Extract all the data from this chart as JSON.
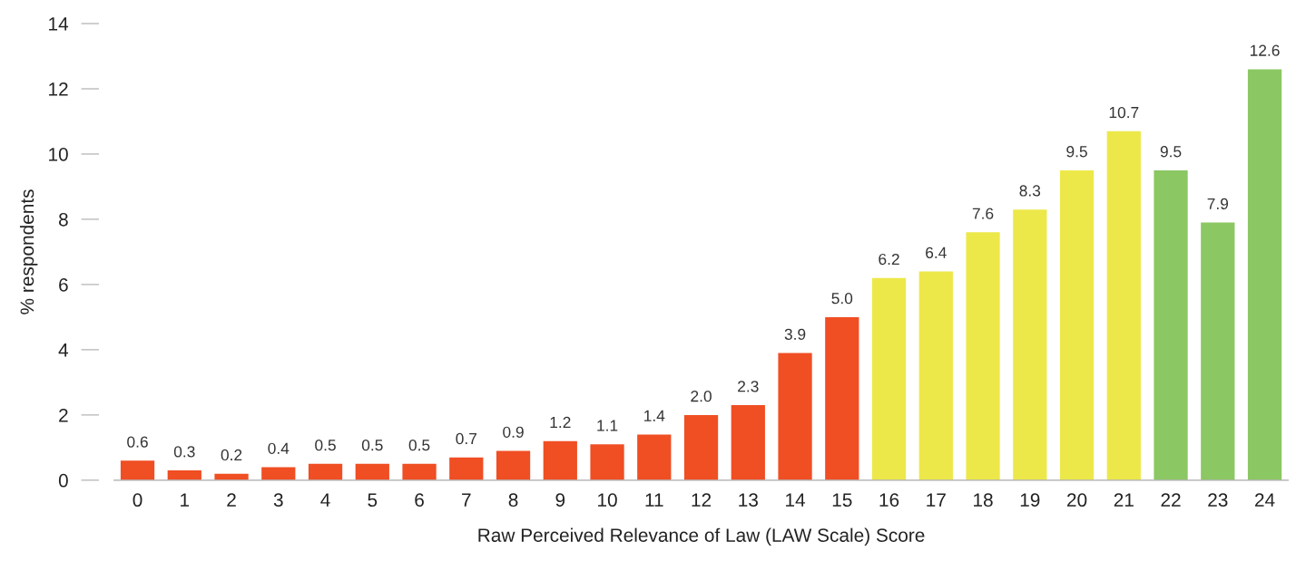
{
  "chart_data": {
    "type": "bar",
    "xlabel": "Raw Perceived Relevance of Law (LAW Scale) Score",
    "ylabel": "% respondents",
    "categories": [
      "0",
      "1",
      "2",
      "3",
      "4",
      "5",
      "6",
      "7",
      "8",
      "9",
      "10",
      "11",
      "12",
      "13",
      "14",
      "15",
      "16",
      "17",
      "18",
      "19",
      "20",
      "21",
      "22",
      "23",
      "24"
    ],
    "values": [
      0.6,
      0.3,
      0.2,
      0.4,
      0.5,
      0.5,
      0.5,
      0.7,
      0.9,
      1.2,
      1.1,
      1.4,
      2.0,
      2.3,
      3.9,
      5.0,
      6.2,
      6.4,
      7.6,
      8.3,
      9.5,
      10.7,
      9.5,
      7.9,
      12.6
    ],
    "value_labels": [
      "0.6",
      "0.3",
      "0.2",
      "0.4",
      "0.5",
      "0.5",
      "0.5",
      "0.7",
      "0.9",
      "1.2",
      "1.1",
      "1.4",
      "2.0",
      "2.3",
      "3.9",
      "5.0",
      "6.2",
      "6.4",
      "7.6",
      "8.3",
      "9.5",
      "10.7",
      "9.5",
      "7.9",
      "12.6"
    ],
    "colors": [
      "#f04e23",
      "#f04e23",
      "#f04e23",
      "#f04e23",
      "#f04e23",
      "#f04e23",
      "#f04e23",
      "#f04e23",
      "#f04e23",
      "#f04e23",
      "#f04e23",
      "#f04e23",
      "#f04e23",
      "#f04e23",
      "#f04e23",
      "#f04e23",
      "#ede84a",
      "#ede84a",
      "#ede84a",
      "#ede84a",
      "#ede84a",
      "#ede84a",
      "#8bc763",
      "#8bc763",
      "#8bc763"
    ],
    "ylim": [
      0,
      14
    ],
    "yticks": [
      0,
      2,
      4,
      6,
      8,
      10,
      12,
      14
    ],
    "grid": false
  }
}
